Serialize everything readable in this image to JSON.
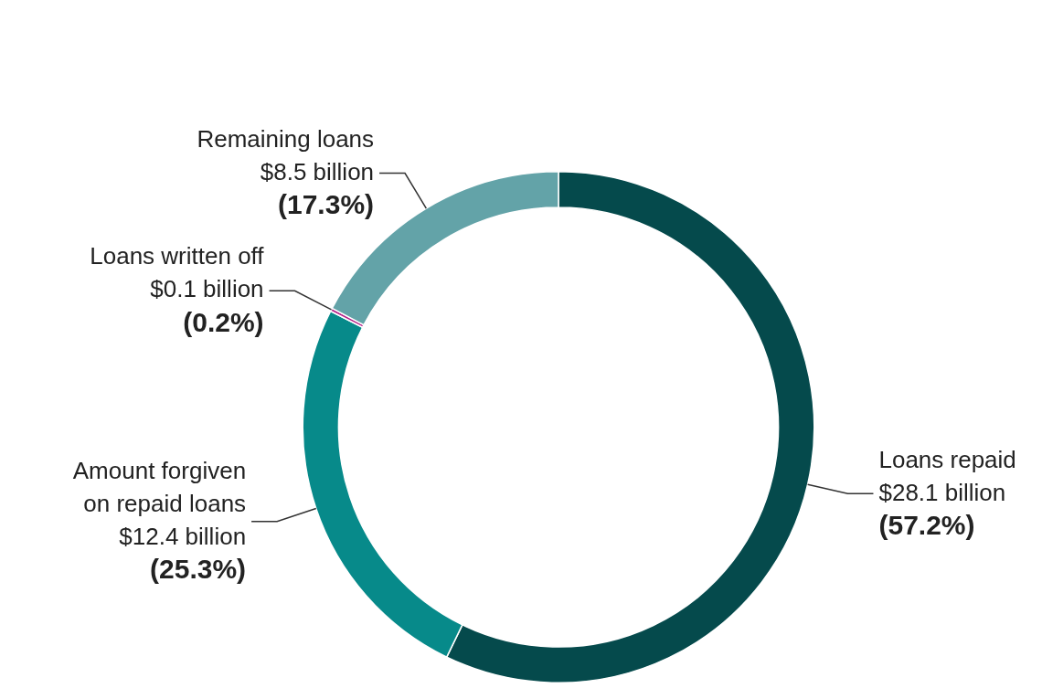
{
  "chart_data": {
    "type": "donut",
    "categories": [
      "Loans repaid",
      "Amount forgiven on repaid loans",
      "Loans written off",
      "Remaining loans"
    ],
    "values": [
      57.2,
      25.3,
      0.2,
      17.3
    ],
    "colors": [
      "#054a4c",
      "#078a8a",
      "#b5238a",
      "#63a3a8"
    ],
    "value_labels": [
      "$28.1 billion\n(57.2%)",
      "$12.4 billion\n(25.3%)",
      "$0.1 billion\n(0.2%)",
      "$8.5 billion\n(17.3%)"
    ],
    "legend": false
  }
}
